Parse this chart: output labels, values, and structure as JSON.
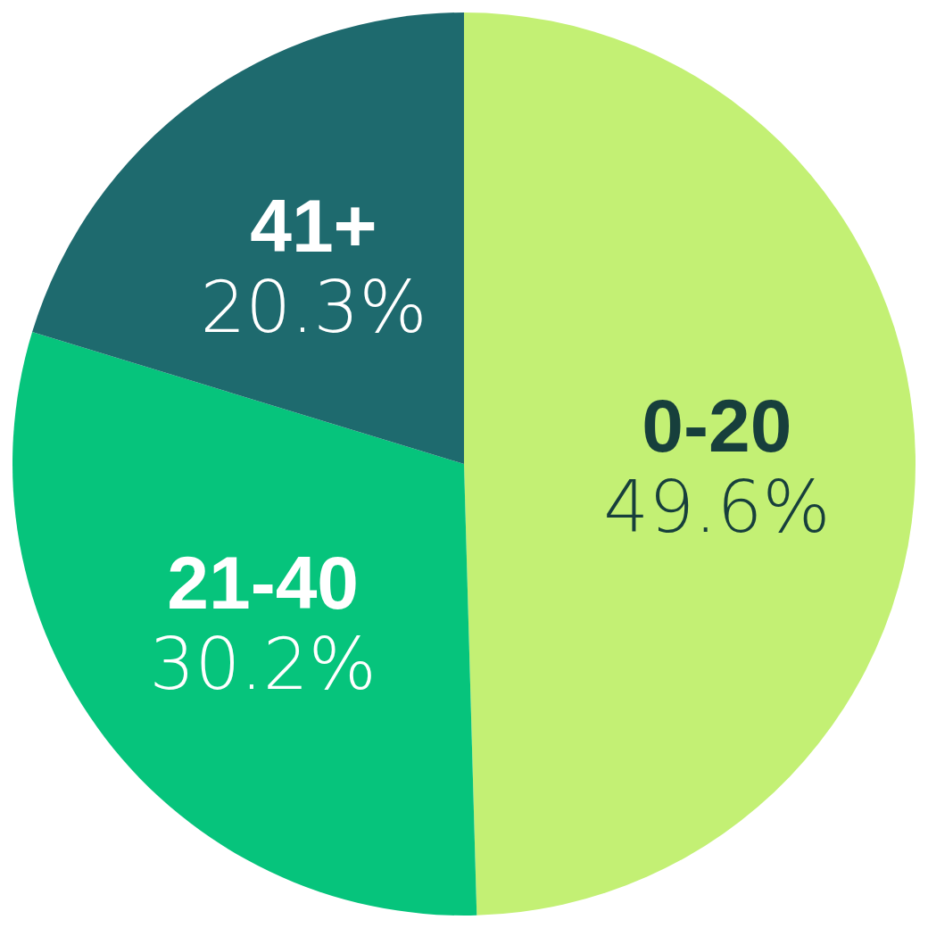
{
  "chart_data": {
    "type": "pie",
    "categories": [
      "0-20",
      "21-40",
      "41+"
    ],
    "values": [
      49.6,
      30.2,
      20.3
    ],
    "colors": [
      "#c3f074",
      "#06c47c",
      "#1e6a6e"
    ],
    "value_labels": [
      "49.6%",
      "30.2%",
      "20.3%"
    ]
  }
}
